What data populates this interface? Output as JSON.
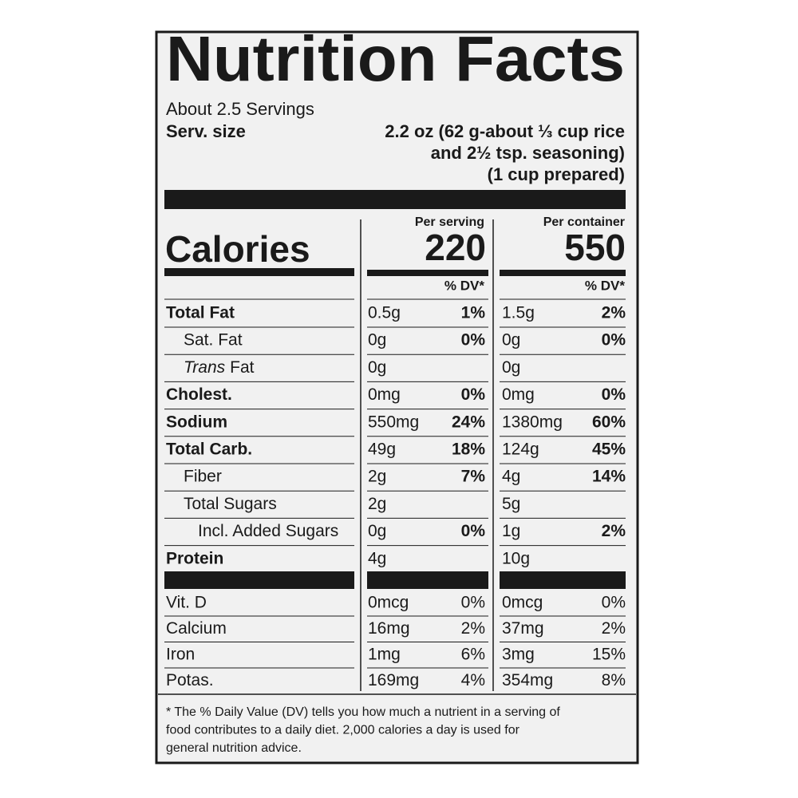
{
  "title": "Nutrition Facts",
  "servings": "About 2.5 Servings",
  "serving_size": {
    "label": "Serv. size",
    "lines": [
      "2.2 oz (62 g-about ⅓ cup rice",
      "and 2½ tsp. seasoning)",
      "(1 cup prepared)"
    ]
  },
  "columns": {
    "per_serving": "Per serving",
    "per_container": "Per container"
  },
  "calories": {
    "label": "Calories",
    "per_serving": 220,
    "per_container": 550
  },
  "dv_header": "% DV*",
  "nutrients": [
    {
      "label": "Total Fat",
      "serving": {
        "amount": "0.5g",
        "dv": "1%"
      },
      "container": {
        "amount": "1.5g",
        "dv": "2%"
      }
    },
    {
      "label": "Sat. Fat",
      "serving": {
        "amount": "0g",
        "dv": "0%"
      },
      "container": {
        "amount": "0g",
        "dv": "0%"
      }
    },
    {
      "label_prefix": "Trans",
      "label": "Fat",
      "serving": {
        "amount": "0g"
      },
      "container": {
        "amount": "0g"
      }
    },
    {
      "label": "Cholest.",
      "serving": {
        "amount": "0mg",
        "dv": "0%"
      },
      "container": {
        "amount": "0mg",
        "dv": "0%"
      }
    },
    {
      "label": "Sodium",
      "serving": {
        "amount": "550mg",
        "dv": "24%"
      },
      "container": {
        "amount": "1380mg",
        "dv": "60%"
      }
    },
    {
      "label": "Total Carb.",
      "serving": {
        "amount": "49g",
        "dv": "18%"
      },
      "container": {
        "amount": "124g",
        "dv": "45%"
      }
    },
    {
      "label": "Fiber",
      "serving": {
        "amount": "2g",
        "dv": "7%"
      },
      "container": {
        "amount": "4g",
        "dv": "14%"
      }
    },
    {
      "label": "Total Sugars",
      "serving": {
        "amount": "2g"
      },
      "container": {
        "amount": "5g"
      }
    },
    {
      "label": "Incl. Added Sugars",
      "serving": {
        "amount": "0g",
        "dv": "0%"
      },
      "container": {
        "amount": "1g",
        "dv": "2%"
      }
    },
    {
      "label": "Protein",
      "serving": {
        "amount": "4g"
      },
      "container": {
        "amount": "10g"
      }
    }
  ],
  "vitamins": [
    {
      "label": "Vit. D",
      "serving": {
        "amount": "0mcg",
        "dv": "0%"
      },
      "container": {
        "amount": "0mcg",
        "dv": "0%"
      }
    },
    {
      "label": "Calcium",
      "serving": {
        "amount": "16mg",
        "dv": "2%"
      },
      "container": {
        "amount": "37mg",
        "dv": "2%"
      }
    },
    {
      "label": "Iron",
      "serving": {
        "amount": "1mg",
        "dv": "6%"
      },
      "container": {
        "amount": "3mg",
        "dv": "15%"
      }
    },
    {
      "label": "Potas.",
      "serving": {
        "amount": "169mg",
        "dv": "4%"
      },
      "container": {
        "amount": "354mg",
        "dv": "8%"
      }
    }
  ],
  "footnote": [
    "* The % Daily Value (DV) tells you how much a nutrient in a serving of",
    "food contributes to a daily diet. 2,000 calories a day is used for",
    "general nutrition advice."
  ]
}
